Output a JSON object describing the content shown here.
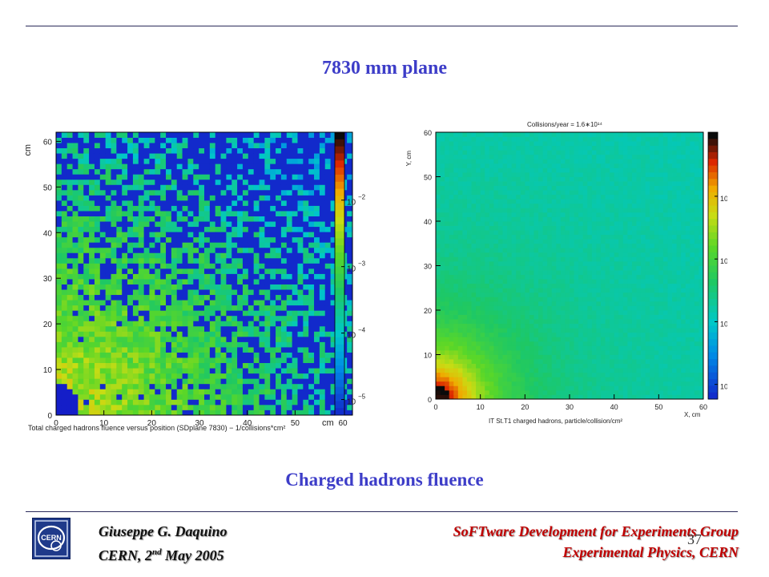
{
  "slide": {
    "title": "7830 mm plane",
    "caption": "Charged hadrons fluence",
    "page_number": "37"
  },
  "footer": {
    "author": "Giuseppe G. Daquino",
    "date_prefix": "CERN, 2",
    "date_sup": "nd",
    "date_suffix": " May 2005",
    "group": "SoFTware Development for Experiments Group",
    "department": "Experimental Physics, CERN",
    "logo_text": "CERN"
  },
  "colors": {
    "title": "#3d3dc8",
    "footer_right": "#c00000",
    "rule": "#2a2a5a"
  },
  "chart_data": [
    {
      "type": "heatmap",
      "title": "",
      "xlabel": "cm",
      "ylabel": "cm",
      "xticks": [
        "0",
        "10",
        "20",
        "30",
        "40",
        "50",
        "60"
      ],
      "yticks": [
        "0",
        "10",
        "20",
        "30",
        "40",
        "50",
        "60"
      ],
      "xlim": [
        0,
        62
      ],
      "ylim": [
        0,
        62
      ],
      "colorbar_ticks": [
        {
          "base": "10",
          "exp": "−2"
        },
        {
          "base": "10",
          "exp": "−3"
        },
        {
          "base": "10",
          "exp": "−4"
        },
        {
          "base": "10",
          "exp": "−5"
        }
      ],
      "color_scale": "log",
      "caption": "Total charged hadrons fluence versus position (SDplane 7830) − 1/collisions*cm²",
      "pattern": "sparse statistics: many empty (blue) bins at large radius, yellow near origin, blue hole at corner (x,y < ~5 cm)"
    },
    {
      "type": "heatmap",
      "title": "Collisions/year = 1.6∗10¹⁴",
      "xlabel": "X, cm",
      "ylabel": "Y, cm",
      "xticks": [
        "0",
        "10",
        "20",
        "30",
        "40",
        "50",
        "60"
      ],
      "yticks": [
        "0",
        "10",
        "20",
        "30",
        "40",
        "50",
        "60"
      ],
      "xlim": [
        0,
        60
      ],
      "ylim": [
        0,
        60
      ],
      "colorbar_ticks": [
        {
          "base": "10",
          "exp": "−2"
        },
        {
          "base": "10",
          "exp": "−3"
        },
        {
          "base": "10",
          "exp": "−4"
        },
        {
          "base": "10",
          "exp": "−5"
        }
      ],
      "color_scale": "log",
      "caption": "IT St.T1 charged hadrons, particle/collision/cm²",
      "pattern": "smooth radial falloff: black/red near origin, yellow-green, green, cyan at far corner"
    }
  ]
}
